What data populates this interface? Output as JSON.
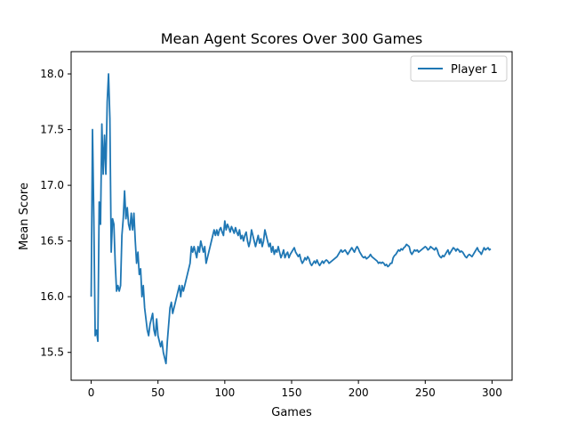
{
  "chart_data": {
    "type": "line",
    "title": "Mean Agent Scores Over 300 Games",
    "xlabel": "Games",
    "ylabel": "Mean Score",
    "xlim": [
      -15,
      315
    ],
    "ylim": [
      15.25,
      18.2
    ],
    "xticks": [
      0,
      50,
      100,
      150,
      200,
      250,
      300
    ],
    "yticks": [
      15.5,
      16.0,
      16.5,
      17.0,
      17.5,
      18.0
    ],
    "ytick_labels": [
      "15.5",
      "16.0",
      "16.5",
      "17.0",
      "17.5",
      "18.0"
    ],
    "grid": false,
    "legend_position": "top-right",
    "series": [
      {
        "name": "Player 1",
        "color": "#1f77b4",
        "points": [
          [
            0,
            16.0
          ],
          [
            1,
            17.5
          ],
          [
            2,
            16.7
          ],
          [
            3,
            15.65
          ],
          [
            4,
            15.7
          ],
          [
            5,
            15.6
          ],
          [
            6,
            16.85
          ],
          [
            7,
            16.65
          ],
          [
            8,
            17.55
          ],
          [
            9,
            17.1
          ],
          [
            10,
            17.45
          ],
          [
            11,
            17.1
          ],
          [
            12,
            17.75
          ],
          [
            13,
            18.0
          ],
          [
            14,
            17.6
          ],
          [
            15,
            16.4
          ],
          [
            16,
            16.7
          ],
          [
            17,
            16.65
          ],
          [
            18,
            16.3
          ],
          [
            19,
            16.05
          ],
          [
            20,
            16.1
          ],
          [
            21,
            16.05
          ],
          [
            22,
            16.1
          ],
          [
            23,
            16.55
          ],
          [
            24,
            16.7
          ],
          [
            25,
            16.95
          ],
          [
            26,
            16.7
          ],
          [
            27,
            16.8
          ],
          [
            28,
            16.65
          ],
          [
            29,
            16.6
          ],
          [
            30,
            16.75
          ],
          [
            31,
            16.6
          ],
          [
            32,
            16.75
          ],
          [
            33,
            16.5
          ],
          [
            34,
            16.3
          ],
          [
            35,
            16.4
          ],
          [
            36,
            16.2
          ],
          [
            37,
            16.25
          ],
          [
            38,
            16.0
          ],
          [
            39,
            16.1
          ],
          [
            40,
            15.9
          ],
          [
            41,
            15.8
          ],
          [
            42,
            15.7
          ],
          [
            43,
            15.65
          ],
          [
            44,
            15.75
          ],
          [
            45,
            15.8
          ],
          [
            46,
            15.85
          ],
          [
            47,
            15.7
          ],
          [
            48,
            15.65
          ],
          [
            49,
            15.8
          ],
          [
            50,
            15.65
          ],
          [
            51,
            15.6
          ],
          [
            52,
            15.55
          ],
          [
            53,
            15.6
          ],
          [
            54,
            15.5
          ],
          [
            55,
            15.45
          ],
          [
            56,
            15.4
          ],
          [
            57,
            15.6
          ],
          [
            58,
            15.75
          ],
          [
            59,
            15.9
          ],
          [
            60,
            15.95
          ],
          [
            61,
            15.85
          ],
          [
            62,
            15.9
          ],
          [
            63,
            15.95
          ],
          [
            64,
            16.0
          ],
          [
            65,
            16.05
          ],
          [
            66,
            16.1
          ],
          [
            67,
            16.0
          ],
          [
            68,
            16.1
          ],
          [
            69,
            16.05
          ],
          [
            70,
            16.1
          ],
          [
            71,
            16.15
          ],
          [
            72,
            16.2
          ],
          [
            73,
            16.25
          ],
          [
            74,
            16.3
          ],
          [
            75,
            16.45
          ],
          [
            76,
            16.4
          ],
          [
            77,
            16.45
          ],
          [
            78,
            16.4
          ],
          [
            79,
            16.35
          ],
          [
            80,
            16.45
          ],
          [
            81,
            16.4
          ],
          [
            82,
            16.5
          ],
          [
            83,
            16.45
          ],
          [
            84,
            16.4
          ],
          [
            85,
            16.45
          ],
          [
            86,
            16.3
          ],
          [
            87,
            16.35
          ],
          [
            88,
            16.4
          ],
          [
            89,
            16.45
          ],
          [
            90,
            16.5
          ],
          [
            91,
            16.55
          ],
          [
            92,
            16.6
          ],
          [
            93,
            16.55
          ],
          [
            94,
            16.6
          ],
          [
            95,
            16.55
          ],
          [
            96,
            16.6
          ],
          [
            97,
            16.62
          ],
          [
            98,
            16.58
          ],
          [
            99,
            16.55
          ],
          [
            100,
            16.68
          ],
          [
            101,
            16.6
          ],
          [
            102,
            16.65
          ],
          [
            103,
            16.62
          ],
          [
            104,
            16.58
          ],
          [
            105,
            16.63
          ],
          [
            106,
            16.6
          ],
          [
            107,
            16.57
          ],
          [
            108,
            16.62
          ],
          [
            109,
            16.58
          ],
          [
            110,
            16.55
          ],
          [
            111,
            16.6
          ],
          [
            112,
            16.52
          ],
          [
            113,
            16.55
          ],
          [
            114,
            16.5
          ],
          [
            115,
            16.55
          ],
          [
            116,
            16.58
          ],
          [
            117,
            16.5
          ],
          [
            118,
            16.45
          ],
          [
            119,
            16.5
          ],
          [
            120,
            16.6
          ],
          [
            121,
            16.55
          ],
          [
            122,
            16.5
          ],
          [
            123,
            16.45
          ],
          [
            124,
            16.5
          ],
          [
            125,
            16.55
          ],
          [
            126,
            16.48
          ],
          [
            127,
            16.52
          ],
          [
            128,
            16.45
          ],
          [
            129,
            16.5
          ],
          [
            130,
            16.6
          ],
          [
            131,
            16.55
          ],
          [
            132,
            16.5
          ],
          [
            133,
            16.45
          ],
          [
            134,
            16.48
          ],
          [
            135,
            16.4
          ],
          [
            136,
            16.45
          ],
          [
            137,
            16.38
          ],
          [
            138,
            16.42
          ],
          [
            139,
            16.4
          ],
          [
            140,
            16.45
          ],
          [
            141,
            16.4
          ],
          [
            142,
            16.35
          ],
          [
            143,
            16.38
          ],
          [
            144,
            16.42
          ],
          [
            145,
            16.35
          ],
          [
            146,
            16.38
          ],
          [
            147,
            16.4
          ],
          [
            148,
            16.35
          ],
          [
            149,
            16.38
          ],
          [
            150,
            16.4
          ],
          [
            151,
            16.42
          ],
          [
            152,
            16.44
          ],
          [
            153,
            16.4
          ],
          [
            154,
            16.38
          ],
          [
            155,
            16.36
          ],
          [
            156,
            16.38
          ],
          [
            157,
            16.33
          ],
          [
            158,
            16.3
          ],
          [
            159,
            16.32
          ],
          [
            160,
            16.35
          ],
          [
            161,
            16.33
          ],
          [
            162,
            16.36
          ],
          [
            163,
            16.34
          ],
          [
            164,
            16.3
          ],
          [
            165,
            16.28
          ],
          [
            166,
            16.3
          ],
          [
            167,
            16.32
          ],
          [
            168,
            16.3
          ],
          [
            169,
            16.33
          ],
          [
            170,
            16.3
          ],
          [
            171,
            16.28
          ],
          [
            172,
            16.3
          ],
          [
            173,
            16.32
          ],
          [
            174,
            16.3
          ],
          [
            175,
            16.32
          ],
          [
            176,
            16.33
          ],
          [
            177,
            16.32
          ],
          [
            178,
            16.3
          ],
          [
            179,
            16.31
          ],
          [
            180,
            16.32
          ],
          [
            181,
            16.33
          ],
          [
            182,
            16.34
          ],
          [
            183,
            16.35
          ],
          [
            184,
            16.36
          ],
          [
            185,
            16.38
          ],
          [
            186,
            16.4
          ],
          [
            187,
            16.42
          ],
          [
            188,
            16.4
          ],
          [
            189,
            16.41
          ],
          [
            190,
            16.42
          ],
          [
            191,
            16.4
          ],
          [
            192,
            16.38
          ],
          [
            193,
            16.4
          ],
          [
            194,
            16.42
          ],
          [
            195,
            16.44
          ],
          [
            196,
            16.42
          ],
          [
            197,
            16.4
          ],
          [
            198,
            16.43
          ],
          [
            199,
            16.45
          ],
          [
            200,
            16.43
          ],
          [
            201,
            16.4
          ],
          [
            202,
            16.38
          ],
          [
            203,
            16.36
          ],
          [
            204,
            16.35
          ],
          [
            205,
            16.36
          ],
          [
            206,
            16.34
          ],
          [
            207,
            16.35
          ],
          [
            208,
            16.36
          ],
          [
            209,
            16.38
          ],
          [
            210,
            16.36
          ],
          [
            211,
            16.35
          ],
          [
            212,
            16.34
          ],
          [
            213,
            16.33
          ],
          [
            214,
            16.32
          ],
          [
            215,
            16.3
          ],
          [
            216,
            16.31
          ],
          [
            217,
            16.3
          ],
          [
            218,
            16.31
          ],
          [
            219,
            16.3
          ],
          [
            220,
            16.28
          ],
          [
            221,
            16.29
          ],
          [
            222,
            16.27
          ],
          [
            223,
            16.28
          ],
          [
            224,
            16.3
          ],
          [
            225,
            16.3
          ],
          [
            226,
            16.35
          ],
          [
            227,
            16.37
          ],
          [
            228,
            16.38
          ],
          [
            229,
            16.4
          ],
          [
            230,
            16.42
          ],
          [
            231,
            16.41
          ],
          [
            232,
            16.43
          ],
          [
            233,
            16.42
          ],
          [
            234,
            16.44
          ],
          [
            235,
            16.45
          ],
          [
            236,
            16.47
          ],
          [
            237,
            16.46
          ],
          [
            238,
            16.45
          ],
          [
            239,
            16.4
          ],
          [
            240,
            16.38
          ],
          [
            241,
            16.4
          ],
          [
            242,
            16.42
          ],
          [
            243,
            16.41
          ],
          [
            244,
            16.42
          ],
          [
            245,
            16.4
          ],
          [
            246,
            16.41
          ],
          [
            247,
            16.42
          ],
          [
            248,
            16.43
          ],
          [
            249,
            16.44
          ],
          [
            250,
            16.45
          ],
          [
            251,
            16.44
          ],
          [
            252,
            16.42
          ],
          [
            253,
            16.43
          ],
          [
            254,
            16.45
          ],
          [
            255,
            16.44
          ],
          [
            256,
            16.43
          ],
          [
            257,
            16.42
          ],
          [
            258,
            16.44
          ],
          [
            259,
            16.42
          ],
          [
            260,
            16.38
          ],
          [
            261,
            16.36
          ],
          [
            262,
            16.35
          ],
          [
            263,
            16.37
          ],
          [
            264,
            16.36
          ],
          [
            265,
            16.38
          ],
          [
            266,
            16.4
          ],
          [
            267,
            16.42
          ],
          [
            268,
            16.38
          ],
          [
            269,
            16.4
          ],
          [
            270,
            16.42
          ],
          [
            271,
            16.44
          ],
          [
            272,
            16.43
          ],
          [
            273,
            16.41
          ],
          [
            274,
            16.43
          ],
          [
            275,
            16.42
          ],
          [
            276,
            16.4
          ],
          [
            277,
            16.41
          ],
          [
            278,
            16.4
          ],
          [
            279,
            16.38
          ],
          [
            280,
            16.36
          ],
          [
            281,
            16.35
          ],
          [
            282,
            16.37
          ],
          [
            283,
            16.38
          ],
          [
            284,
            16.37
          ],
          [
            285,
            16.36
          ],
          [
            286,
            16.38
          ],
          [
            287,
            16.4
          ],
          [
            288,
            16.42
          ],
          [
            289,
            16.44
          ],
          [
            290,
            16.41
          ],
          [
            291,
            16.4
          ],
          [
            292,
            16.38
          ],
          [
            293,
            16.41
          ],
          [
            294,
            16.44
          ],
          [
            295,
            16.42
          ],
          [
            296,
            16.43
          ],
          [
            297,
            16.44
          ],
          [
            298,
            16.42
          ],
          [
            299,
            16.43
          ]
        ]
      }
    ]
  }
}
